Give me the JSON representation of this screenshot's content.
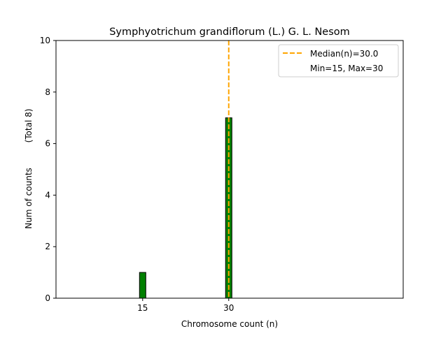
{
  "chart_data": {
    "type": "bar",
    "title": "Symphyotrichum grandiflorum (L.) G. L. Nesom",
    "xlabel": "Chromosome count (n)",
    "ylabel": "Num of counts",
    "ylabel2": "(Total 8)",
    "xlim": [
      -0.1,
      60.4
    ],
    "ylim": [
      0,
      10
    ],
    "xticks": [
      15,
      30
    ],
    "yticks": [
      0,
      2,
      4,
      6,
      8,
      10
    ],
    "bars": [
      {
        "x": 15,
        "value": 1
      },
      {
        "x": 30,
        "value": 7
      }
    ],
    "bar_width": 1.1,
    "zero_bins_range": [
      0,
      33.5
    ],
    "median": 30.0,
    "legend": {
      "position": "top-right",
      "entries": [
        "Median(n)=30.0",
        "Min=15, Max=30"
      ]
    },
    "colors": {
      "bar": "#008000",
      "edge": "#000000",
      "median": "#ffa500"
    }
  }
}
